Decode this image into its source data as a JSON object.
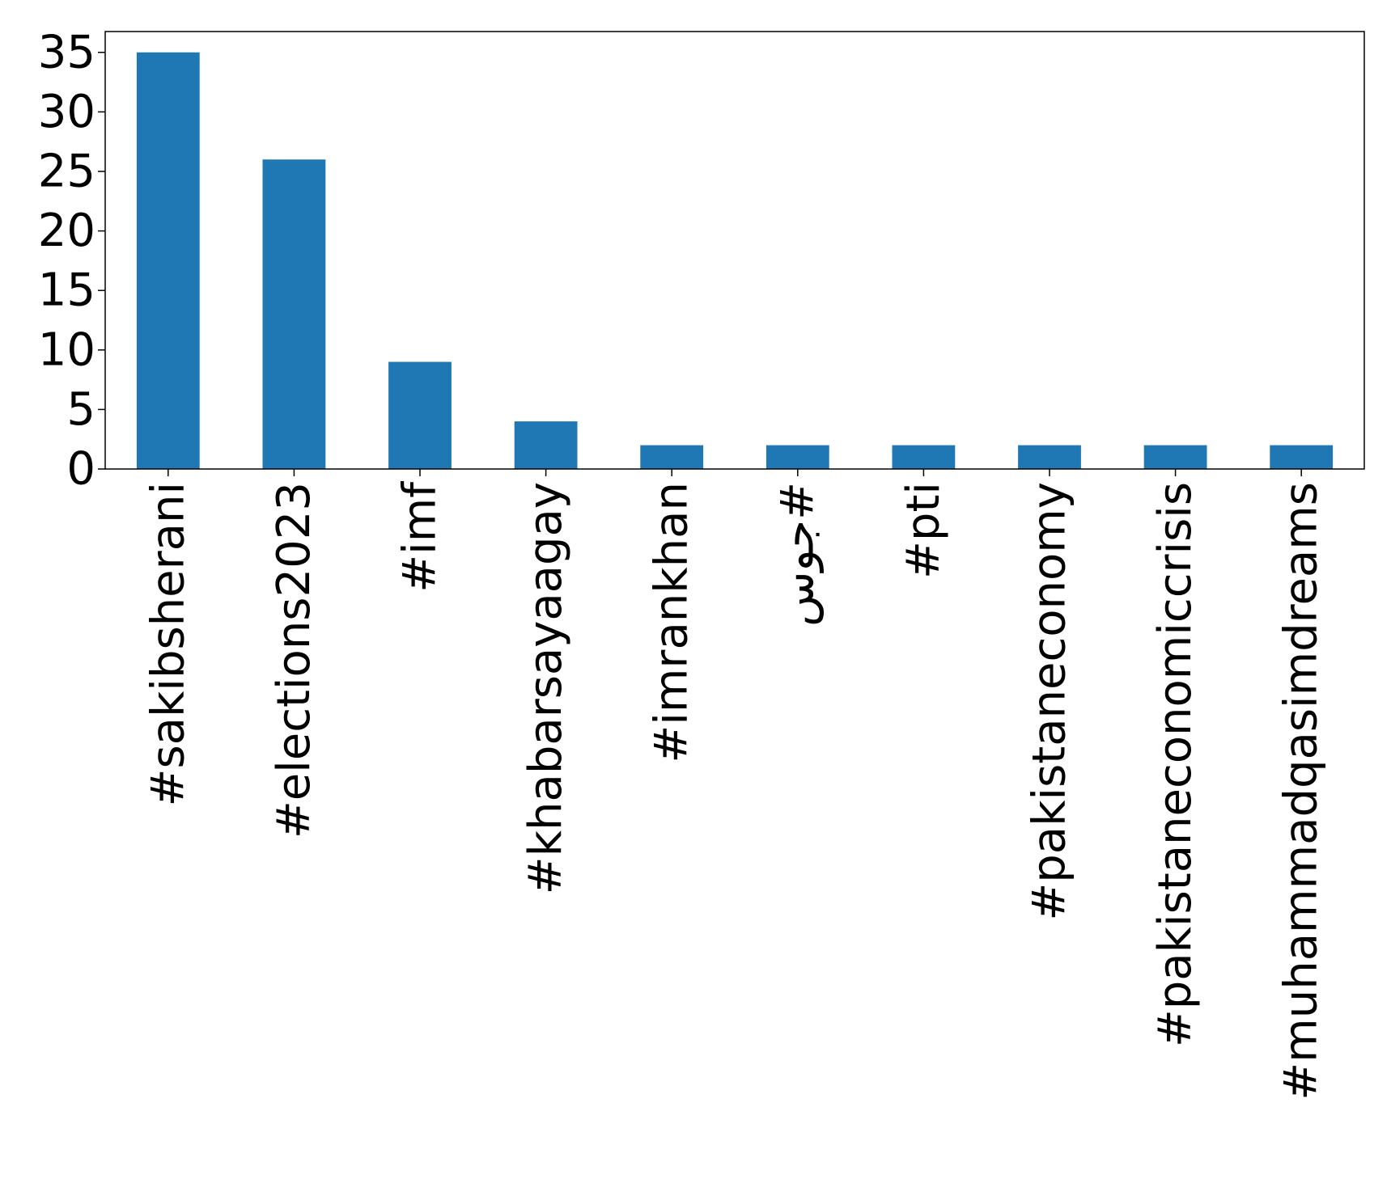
{
  "chart_data": {
    "type": "bar",
    "title": "",
    "xlabel": "",
    "ylabel": "",
    "categories": [
      "#sakibsherani",
      "#elections2023",
      "#imf",
      "#khabarsayaagay",
      "#imrankhan",
      "#جوس",
      "#pti",
      "#pakistaneconomy",
      "#pakistaneconomiccrisis",
      "#muhammadqasimdreams"
    ],
    "values": [
      35,
      26,
      9,
      4,
      2,
      2,
      2,
      2,
      2,
      2
    ],
    "ylim": [
      0,
      36.75
    ],
    "yticks": [
      0,
      5,
      10,
      15,
      20,
      25,
      30,
      35
    ],
    "grid": false,
    "legend": "none",
    "bar_color": "#1f77b4"
  }
}
